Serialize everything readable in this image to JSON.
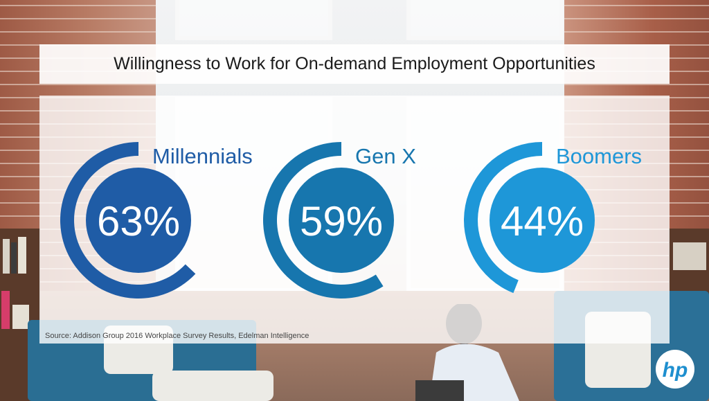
{
  "chart_data": {
    "type": "radial-bar",
    "title": "Willingness to Work for On-demand Employment Opportunities",
    "categories": [
      "Millennials",
      "Gen X",
      "Boomers"
    ],
    "series": [
      {
        "values": [
          63,
          59,
          44
        ],
        "value_labels": [
          "63%",
          "59%",
          "44%"
        ]
      }
    ],
    "value_max": 100,
    "colors": [
      "#1f5ca6",
      "#1776ae",
      "#1e97d8"
    ],
    "grid": false,
    "legend": "none",
    "source": "Source: Addison Group 2016 Workplace Survey Results, Edelman Intelligence"
  },
  "brand": {
    "logo_text": "hp",
    "logo_color": "#1e8fcf"
  }
}
